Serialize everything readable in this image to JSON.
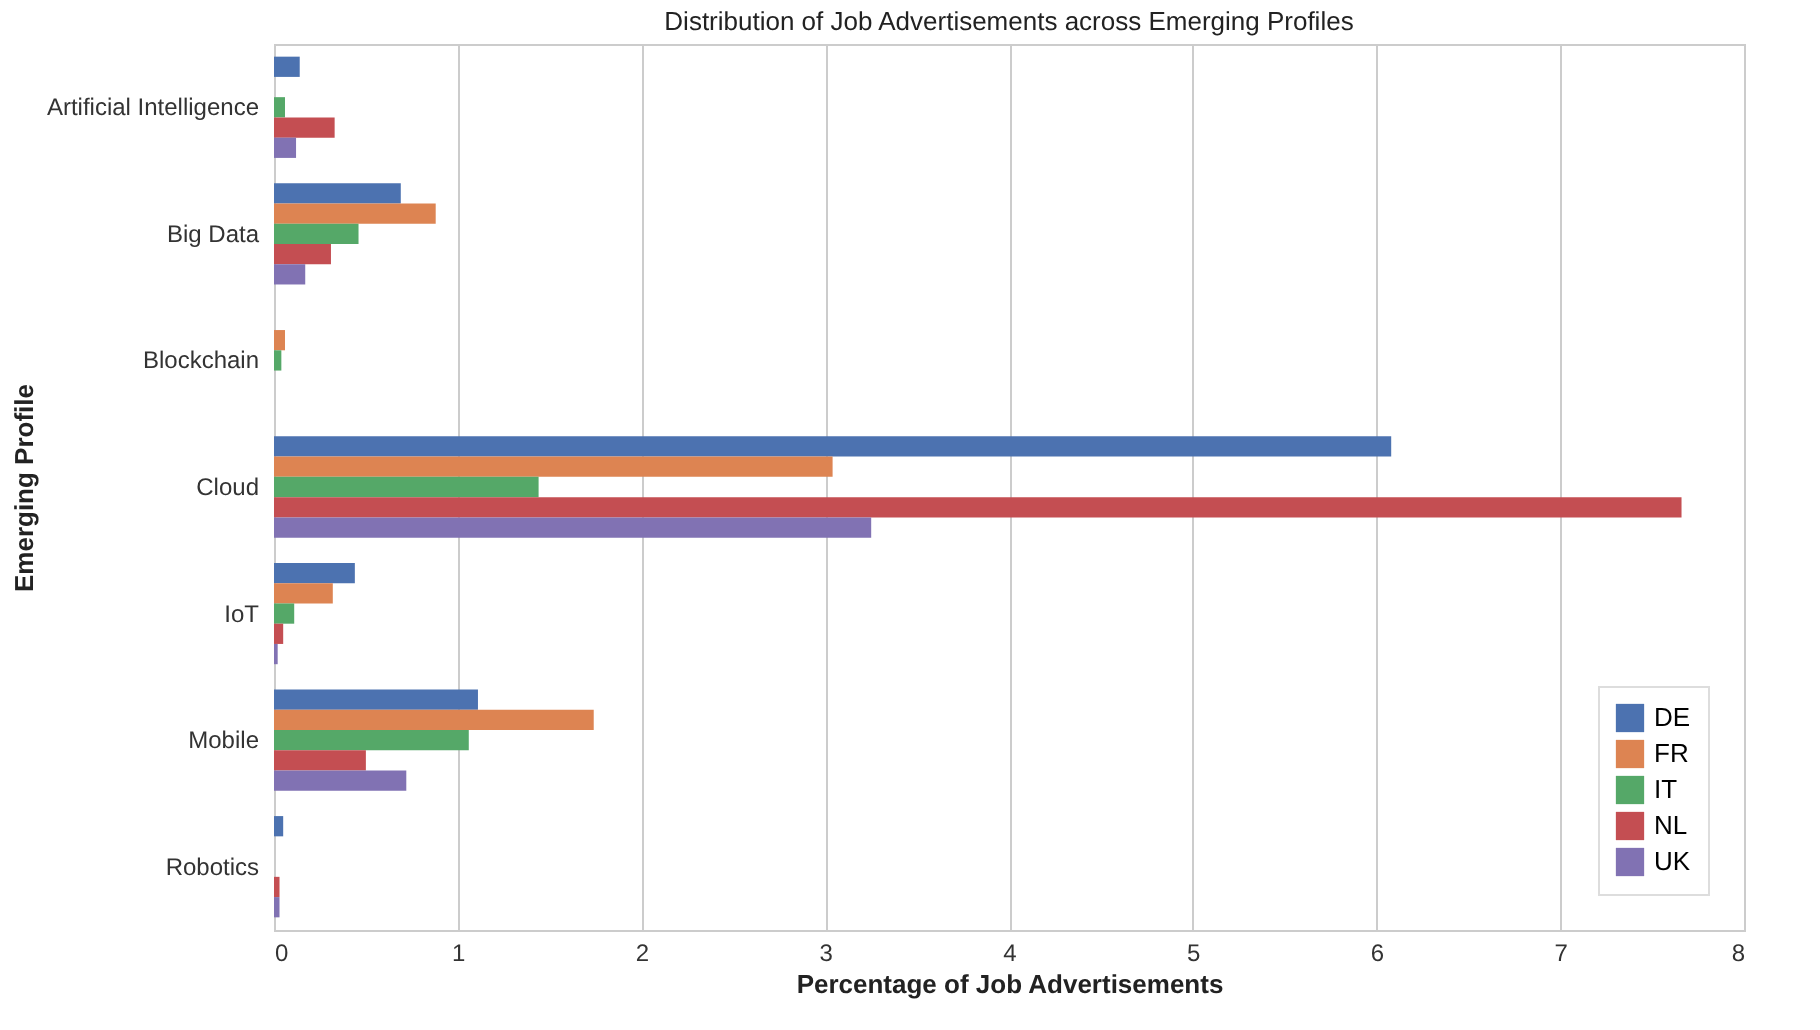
{
  "chart_data": {
    "type": "bar",
    "orientation": "horizontal",
    "title": "Distribution of Job Advertisements across Emerging Profiles",
    "xlabel": "Percentage of Job Advertisements",
    "ylabel": "Emerging Profile",
    "categories": [
      "Artificial Intelligence",
      "Big Data",
      "Blockchain",
      "Cloud",
      "IoT",
      "Mobile",
      "Robotics"
    ],
    "series": [
      {
        "name": "DE",
        "color": "#4c72b0",
        "values": [
          0.14,
          0.69,
          0,
          6.08,
          0.44,
          1.11,
          0.05
        ]
      },
      {
        "name": "FR",
        "color": "#dd8452",
        "values": [
          0,
          0.88,
          0.06,
          3.04,
          0.32,
          1.74,
          0
        ]
      },
      {
        "name": "IT",
        "color": "#55a868",
        "values": [
          0.06,
          0.46,
          0.04,
          1.44,
          0.11,
          1.06,
          0
        ]
      },
      {
        "name": "NL",
        "color": "#c44e52",
        "values": [
          0.33,
          0.31,
          0,
          7.66,
          0.05,
          0.5,
          0.03
        ]
      },
      {
        "name": "UK",
        "color": "#8172b3",
        "values": [
          0.12,
          0.17,
          0,
          3.25,
          0.02,
          0.72,
          0.03
        ]
      }
    ],
    "xlim": [
      0,
      8
    ],
    "xticks": [
      0,
      1,
      2,
      3,
      4,
      5,
      6,
      7,
      8
    ],
    "grid": "x",
    "legend": "bottom right"
  }
}
